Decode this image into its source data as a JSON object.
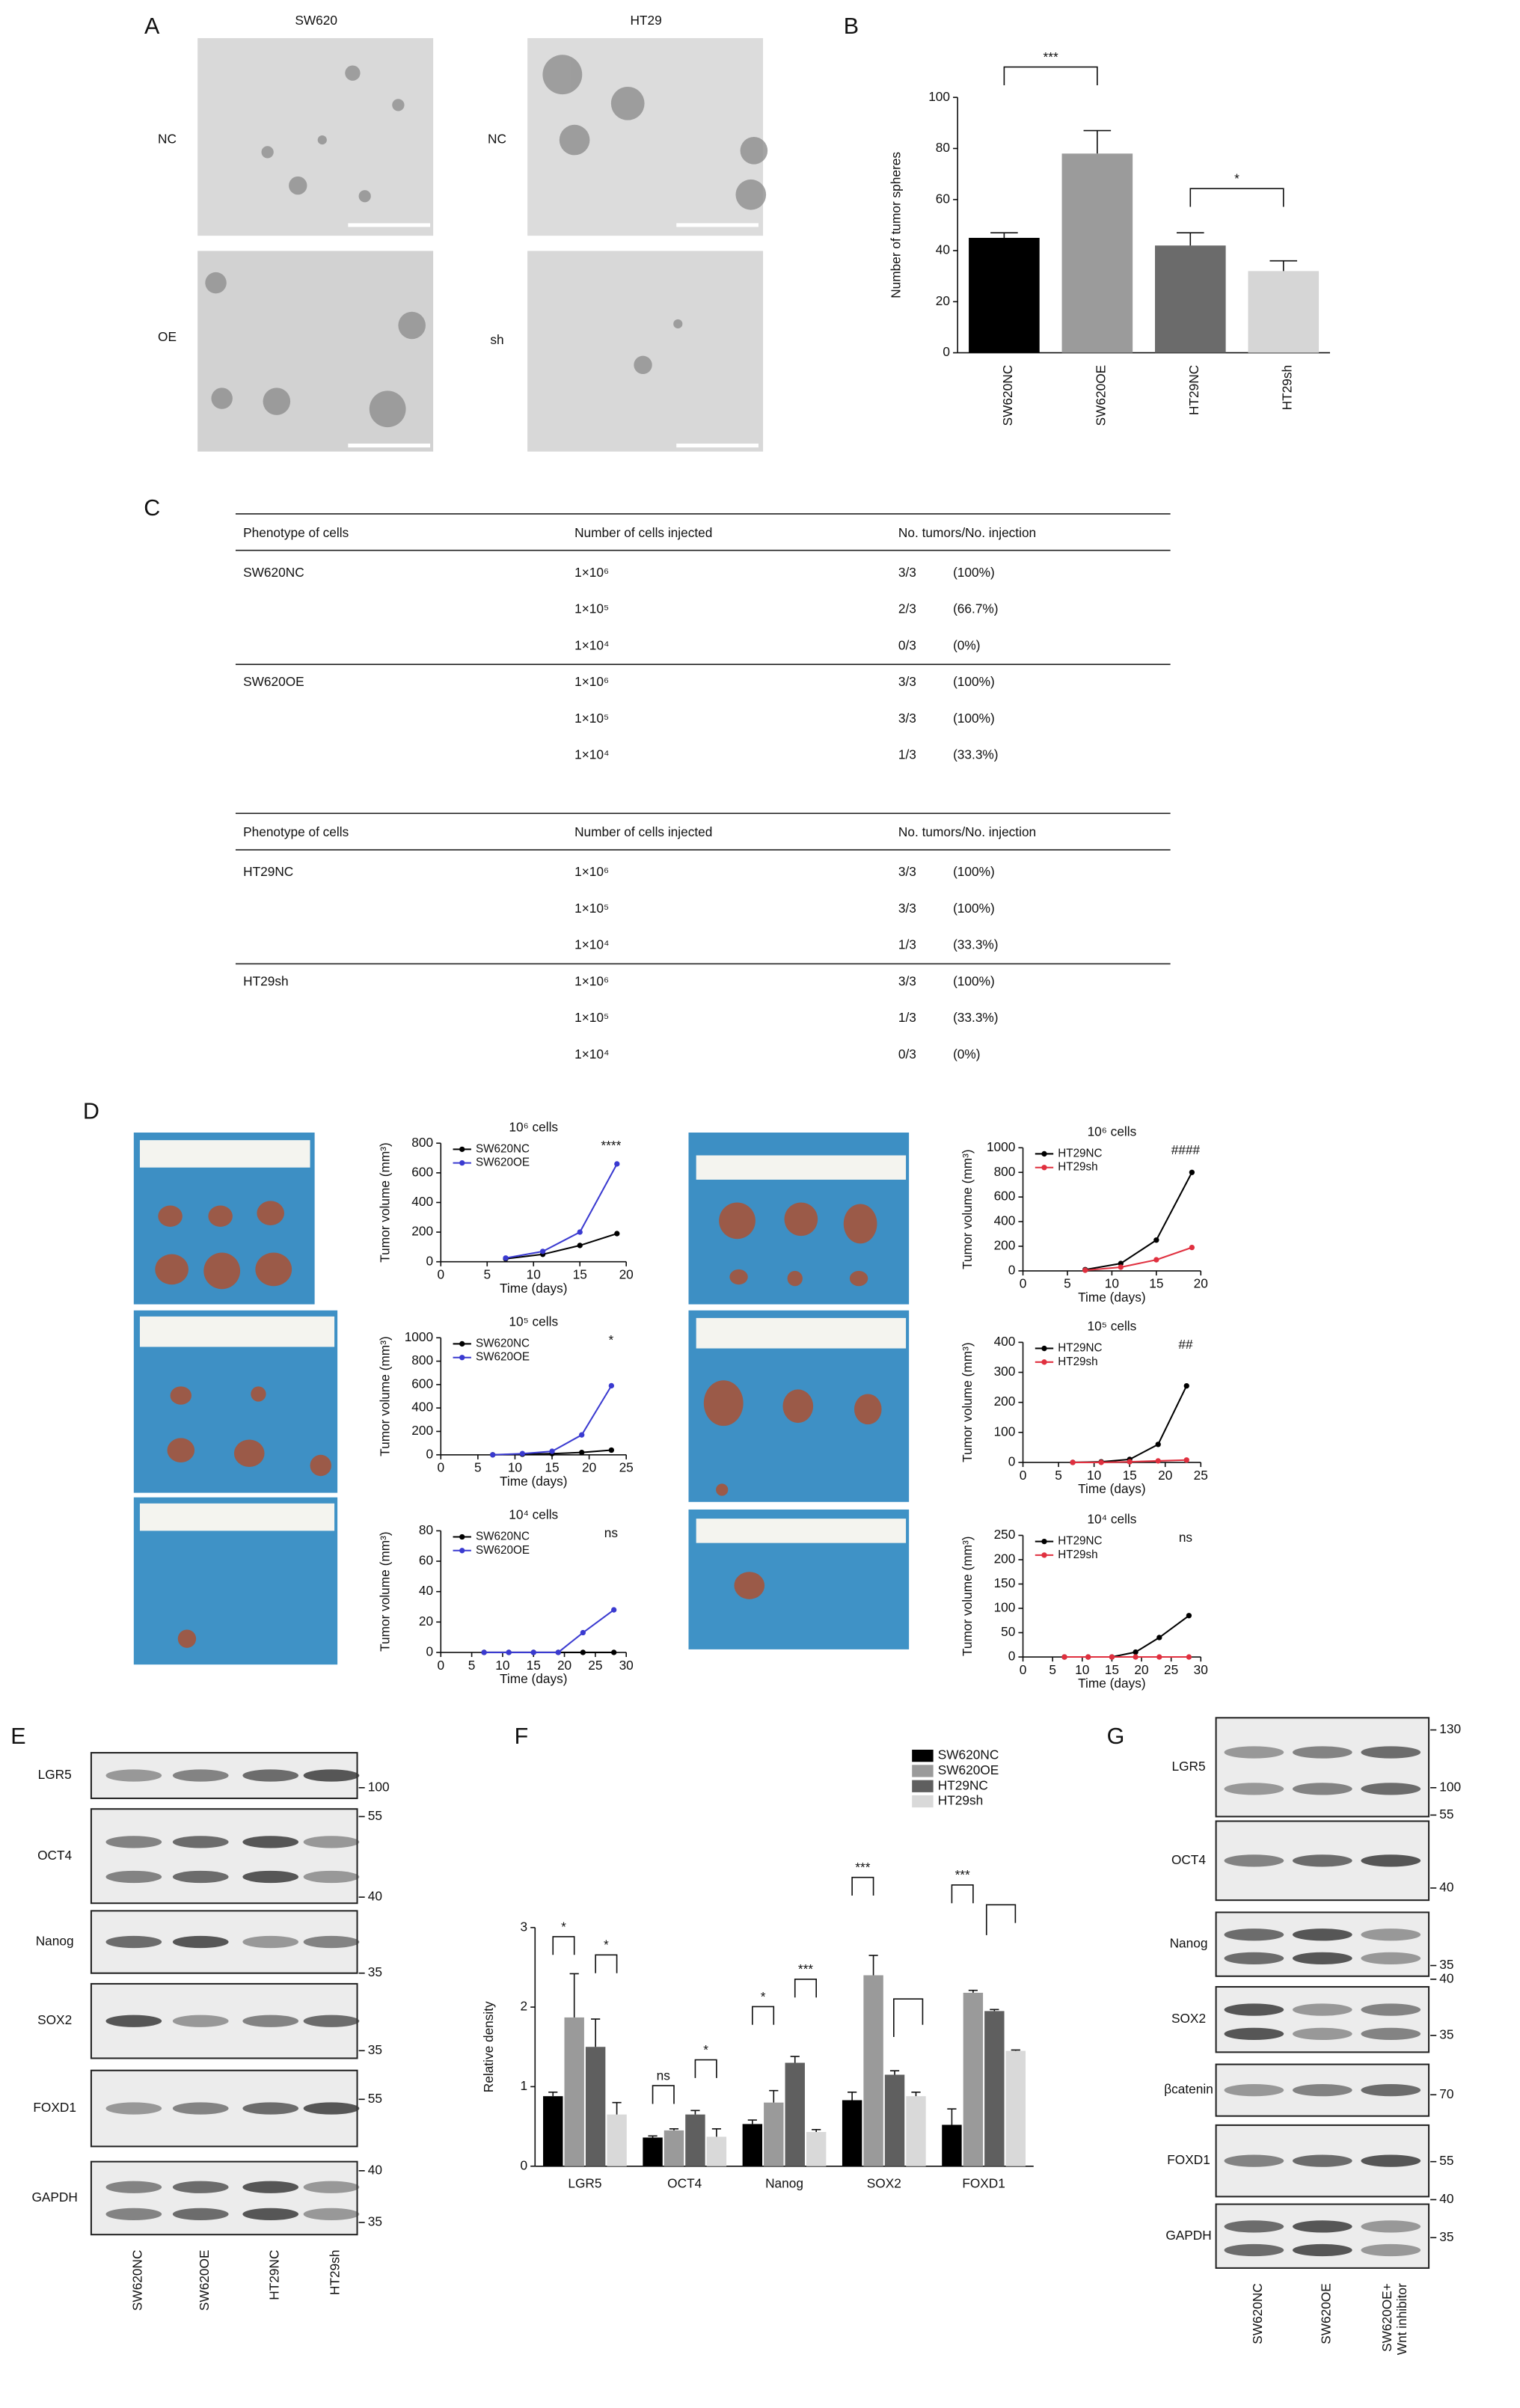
{
  "panel_a": {
    "label": "A",
    "columns": [
      "SW620",
      "HT29"
    ],
    "row_labels": [
      [
        "NC",
        "OE"
      ],
      [
        "NC",
        "sh"
      ]
    ]
  },
  "table_c": {
    "label": "C",
    "tables": [
      {
        "header": [
          "Phenotype of cells",
          "Number of cells injected",
          "No. tumors/No. injection"
        ],
        "groups": [
          {
            "phenotype": "SW620NC",
            "rows": [
              [
                "1×10⁶",
                "3/3",
                "(100%)"
              ],
              [
                "1×10⁵",
                "2/3",
                "(66.7%)"
              ],
              [
                "1×10⁴",
                "0/3",
                "(0%)"
              ]
            ]
          },
          {
            "phenotype": "SW620OE",
            "rows": [
              [
                "1×10⁶",
                "3/3",
                "(100%)"
              ],
              [
                "1×10⁵",
                "3/3",
                "(100%)"
              ],
              [
                "1×10⁴",
                "1/3",
                "(33.3%)"
              ]
            ]
          }
        ]
      },
      {
        "header": [
          "Phenotype of cells",
          "Number of cells injected",
          "No. tumors/No. injection"
        ],
        "groups": [
          {
            "phenotype": "HT29NC",
            "rows": [
              [
                "1×10⁶",
                "3/3",
                "(100%)"
              ],
              [
                "1×10⁵",
                "3/3",
                "(100%)"
              ],
              [
                "1×10⁴",
                "1/3",
                "(33.3%)"
              ]
            ]
          },
          {
            "phenotype": "HT29sh",
            "rows": [
              [
                "1×10⁶",
                "3/3",
                "(100%)"
              ],
              [
                "1×10⁵",
                "1/3",
                "(33.3%)"
              ],
              [
                "1×10⁴",
                "0/3",
                "(0%)"
              ]
            ]
          }
        ]
      }
    ]
  },
  "panel_d": {
    "label": "D"
  },
  "chart_data": [
    {
      "type": "bar",
      "panel": "B",
      "ylabel": "Number of tumor spheres",
      "categories": [
        "SW620NC",
        "SW620OE",
        "HT29NC",
        "HT29sh"
      ],
      "values": [
        45,
        78,
        42,
        32
      ],
      "errors": [
        2,
        9,
        5,
        4
      ],
      "colors": [
        "#000000",
        "#9b9b9b",
        "#6b6b6b",
        "#d6d6d6"
      ],
      "ylim": [
        0,
        100
      ],
      "yticks": [
        0,
        20,
        40,
        60,
        80,
        100
      ],
      "annotations": [
        "***",
        "*"
      ]
    },
    {
      "type": "line",
      "title": "10⁶ cells",
      "xlabel": "Time (days)",
      "ylabel": "Tumor volume (mm³)",
      "xlim": [
        0,
        20
      ],
      "xticks": [
        0,
        5,
        10,
        15,
        20
      ],
      "ylim": [
        0,
        800
      ],
      "yticks": [
        0,
        200,
        400,
        600,
        800
      ],
      "x": [
        7,
        11,
        15,
        19
      ],
      "series": [
        {
          "name": "SW620NC",
          "color": "#000000",
          "values": [
            20,
            50,
            110,
            190
          ]
        },
        {
          "name": "SW620OE",
          "color": "#3a3ad0",
          "values": [
            25,
            70,
            200,
            660
          ]
        }
      ],
      "annotations": [
        "****"
      ]
    },
    {
      "type": "line",
      "title": "10⁵ cells",
      "xlabel": "Time (days)",
      "ylabel": "Tumor volume (mm³)",
      "xlim": [
        0,
        25
      ],
      "xticks": [
        0,
        5,
        10,
        15,
        20,
        25
      ],
      "ylim": [
        0,
        1000
      ],
      "yticks": [
        0,
        200,
        400,
        600,
        800,
        1000
      ],
      "x": [
        7,
        11,
        15,
        19,
        23
      ],
      "series": [
        {
          "name": "SW620NC",
          "color": "#000000",
          "values": [
            0,
            5,
            10,
            20,
            40
          ]
        },
        {
          "name": "SW620OE",
          "color": "#3a3ad0",
          "values": [
            0,
            10,
            30,
            170,
            590
          ]
        }
      ],
      "annotations": [
        "*"
      ]
    },
    {
      "type": "line",
      "title": "10⁴ cells",
      "xlabel": "Time (days)",
      "ylabel": "Tumor volume (mm³)",
      "xlim": [
        0,
        30
      ],
      "xticks": [
        0,
        5,
        10,
        15,
        20,
        25,
        30
      ],
      "ylim": [
        0,
        80
      ],
      "yticks": [
        0,
        20,
        40,
        60,
        80
      ],
      "x": [
        7,
        11,
        15,
        19,
        23,
        28
      ],
      "series": [
        {
          "name": "SW620NC",
          "color": "#000000",
          "values": [
            0,
            0,
            0,
            0,
            0,
            0
          ]
        },
        {
          "name": "SW620OE",
          "color": "#3a3ad0",
          "values": [
            0,
            0,
            0,
            0,
            13,
            28
          ]
        }
      ],
      "annotations": [
        "ns"
      ]
    },
    {
      "type": "line",
      "title": "10⁶ cells",
      "xlabel": "Time (days)",
      "ylabel": "Tumor volume (mm³)",
      "xlim": [
        0,
        20
      ],
      "xticks": [
        0,
        5,
        10,
        15,
        20
      ],
      "ylim": [
        0,
        1000
      ],
      "yticks": [
        0,
        200,
        400,
        600,
        800,
        1000
      ],
      "x": [
        7,
        11,
        15,
        19
      ],
      "series": [
        {
          "name": "HT29NC",
          "color": "#000000",
          "values": [
            10,
            60,
            250,
            800
          ]
        },
        {
          "name": "HT29sh",
          "color": "#e0303f",
          "values": [
            5,
            30,
            90,
            190
          ]
        }
      ],
      "annotations": [
        "####"
      ]
    },
    {
      "type": "line",
      "title": "10⁵ cells",
      "xlabel": "Time (days)",
      "ylabel": "Tumor volume (mm³)",
      "xlim": [
        0,
        25
      ],
      "xticks": [
        0,
        5,
        10,
        15,
        20,
        25
      ],
      "ylim": [
        0,
        400
      ],
      "yticks": [
        0,
        100,
        200,
        300,
        400
      ],
      "x": [
        7,
        11,
        15,
        19,
        23
      ],
      "series": [
        {
          "name": "HT29NC",
          "color": "#000000",
          "values": [
            0,
            2,
            10,
            60,
            255
          ]
        },
        {
          "name": "HT29sh",
          "color": "#e0303f",
          "values": [
            0,
            0,
            2,
            5,
            8
          ]
        }
      ],
      "annotations": [
        "##"
      ]
    },
    {
      "type": "line",
      "title": "10⁴ cells",
      "xlabel": "Time (days)",
      "ylabel": "Tumor volume (mm³)",
      "xlim": [
        0,
        30
      ],
      "xticks": [
        0,
        5,
        10,
        15,
        20,
        25,
        30
      ],
      "ylim": [
        0,
        250
      ],
      "yticks": [
        0,
        50,
        100,
        150,
        200,
        250
      ],
      "x": [
        7,
        11,
        15,
        19,
        23,
        28
      ],
      "series": [
        {
          "name": "HT29NC",
          "color": "#000000",
          "values": [
            0,
            0,
            0,
            10,
            40,
            85
          ]
        },
        {
          "name": "HT29sh",
          "color": "#e0303f",
          "values": [
            0,
            0,
            0,
            0,
            0,
            0
          ]
        }
      ],
      "annotations": [
        "ns"
      ]
    },
    {
      "type": "bar",
      "panel": "F",
      "ylabel": "Relative density",
      "categories": [
        "LGR5",
        "OCT4",
        "Nanog",
        "SOX2",
        "FOXD1"
      ],
      "ylim": [
        0,
        3
      ],
      "yticks": [
        0,
        1,
        2,
        3
      ],
      "series": [
        {
          "name": "SW620NC",
          "color": "#000000",
          "values": [
            0.88,
            0.36,
            0.53,
            0.83,
            0.52
          ],
          "errors": [
            0.05,
            0.02,
            0.05,
            0.1,
            0.2
          ]
        },
        {
          "name": "SW620OE",
          "color": "#9a9a9a",
          "values": [
            1.87,
            0.45,
            0.8,
            2.4,
            2.18
          ],
          "errors": [
            0.55,
            0.02,
            0.15,
            0.25,
            0.03
          ]
        },
        {
          "name": "HT29NC",
          "color": "#5f5f5f",
          "values": [
            1.5,
            0.65,
            1.3,
            1.15,
            1.95
          ],
          "errors": [
            0.35,
            0.05,
            0.08,
            0.05,
            0.02
          ]
        },
        {
          "name": "HT29sh",
          "color": "#d9d9d9",
          "values": [
            0.65,
            0.37,
            0.43,
            0.88,
            1.45
          ],
          "errors": [
            0.15,
            0.1,
            0.03,
            0.05,
            0.01
          ]
        }
      ],
      "annotations": [
        "*",
        "*",
        "ns",
        "*",
        "*",
        "***",
        "***",
        "***"
      ]
    }
  ],
  "blot_e": {
    "label": "E",
    "columns": [
      "SW620NC",
      "SW620OE",
      "HT29NC",
      "HT29sh"
    ],
    "rows": [
      {
        "name": "LGR5",
        "markers": [
          100
        ]
      },
      {
        "name": "OCT4",
        "markers": [
          55,
          40
        ]
      },
      {
        "name": "Nanog",
        "markers": [
          35
        ]
      },
      {
        "name": "SOX2",
        "markers": [
          35
        ]
      },
      {
        "name": "FOXD1",
        "markers": [
          55
        ]
      },
      {
        "name": "GAPDH",
        "markers": [
          40,
          35
        ]
      }
    ]
  },
  "blot_g": {
    "label": "G",
    "columns": [
      [
        "SW620NC"
      ],
      [
        "SW620OE"
      ],
      [
        "SW620OE+",
        "Wnt inhibitor"
      ]
    ],
    "rows": [
      {
        "name": "LGR5",
        "markers": [
          130,
          100
        ]
      },
      {
        "name": "OCT4",
        "markers": [
          55
        ]
      },
      {
        "name": "Nanog",
        "markers": [
          40,
          35
        ]
      },
      {
        "name": "SOX2",
        "markers": [
          40,
          35
        ]
      },
      {
        "name": "βcatenin",
        "markers": [
          70
        ]
      },
      {
        "name": "FOXD1",
        "markers": [
          55
        ]
      },
      {
        "name": "GAPDH",
        "markers": [
          40,
          35
        ]
      }
    ]
  }
}
